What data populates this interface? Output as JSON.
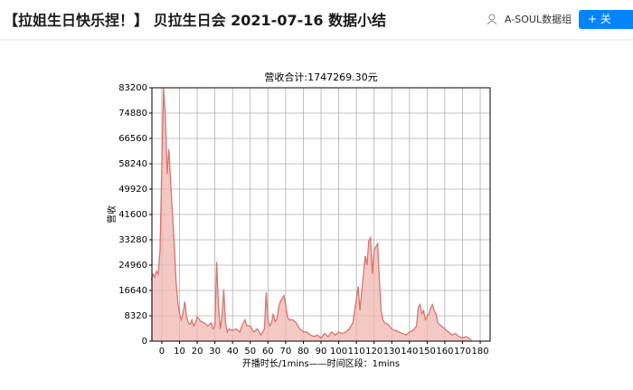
{
  "header": {
    "title": "【拉姐生日快乐捏！】 贝拉生日会 2021-07-16 数据小结",
    "author": "A-SOUL数据组",
    "button": "+ 关"
  },
  "chart_data": {
    "type": "area",
    "title": "营收合计:1747269.30元",
    "x_label": "开播时长/1mins——时间区段：1mins",
    "y_label": "营收",
    "line_color": "#d9756d",
    "fill_color": "#f0b7b2",
    "grid": true,
    "xlim": [
      -5.6,
      185.6
    ],
    "ylim": [
      0,
      83200
    ],
    "xticks": [
      0,
      10,
      20,
      30,
      40,
      50,
      60,
      70,
      80,
      90,
      100,
      110,
      120,
      130,
      140,
      150,
      160,
      170,
      180
    ],
    "yticks": [
      0,
      8320,
      16640,
      24960,
      33280,
      41600,
      49920,
      58240,
      66560,
      74880,
      83200
    ],
    "x": [
      -6,
      -5,
      -4,
      -3,
      -2,
      -1,
      0,
      1,
      2,
      3,
      4,
      5,
      6,
      7,
      8,
      9,
      10,
      11,
      12,
      13,
      14,
      15,
      16,
      17,
      18,
      19,
      20,
      22,
      24,
      26,
      28,
      29,
      30,
      31,
      32,
      33,
      34,
      35,
      36,
      37,
      38,
      40,
      42,
      44,
      46,
      47,
      48,
      50,
      52,
      54,
      56,
      58,
      59,
      60,
      61,
      62,
      63,
      64,
      65,
      66,
      67,
      68,
      69,
      70,
      71,
      72,
      74,
      76,
      78,
      80,
      82,
      84,
      86,
      88,
      90,
      92,
      94,
      96,
      98,
      100,
      102,
      104,
      106,
      108,
      109,
      110,
      111,
      112,
      113,
      114,
      115,
      116,
      117,
      118,
      119,
      120,
      121,
      122,
      123,
      124,
      125,
      126,
      128,
      130,
      132,
      134,
      136,
      138,
      140,
      142,
      144,
      145,
      146,
      147,
      148,
      149,
      150,
      151,
      152,
      153,
      154,
      155,
      156,
      158,
      160,
      162,
      164,
      166,
      168,
      170,
      172,
      174,
      175
    ],
    "values": [
      20000,
      22000,
      21000,
      23000,
      22000,
      30000,
      58000,
      83000,
      74000,
      55000,
      63000,
      52000,
      42000,
      32000,
      20000,
      13000,
      9000,
      7000,
      9000,
      13000,
      8000,
      6000,
      5500,
      7000,
      5000,
      6000,
      8000,
      6500,
      6000,
      5000,
      6000,
      4000,
      5000,
      26000,
      12000,
      4000,
      8000,
      17000,
      6000,
      3000,
      4000,
      3500,
      4000,
      3000,
      6000,
      7000,
      5000,
      5000,
      3000,
      4000,
      2000,
      4000,
      16000,
      7000,
      5000,
      6000,
      9000,
      6500,
      7000,
      11000,
      13000,
      14000,
      15000,
      12000,
      8000,
      7000,
      7000,
      6000,
      4000,
      3000,
      3000,
      2000,
      1500,
      2000,
      1000,
      2500,
      1500,
      3000,
      2000,
      3000,
      2500,
      3000,
      4000,
      6000,
      10000,
      14000,
      18000,
      10000,
      16000,
      22000,
      28000,
      25000,
      33000,
      34000,
      22000,
      30000,
      31000,
      32000,
      20000,
      10000,
      7000,
      6000,
      5500,
      4000,
      3500,
      3000,
      2500,
      2000,
      3000,
      3500,
      5000,
      11000,
      12000,
      9000,
      10000,
      7000,
      8000,
      9000,
      11000,
      12000,
      10000,
      9000,
      6000,
      5000,
      4000,
      3000,
      2000,
      2500,
      1500,
      1000,
      1500,
      800,
      400
    ]
  }
}
